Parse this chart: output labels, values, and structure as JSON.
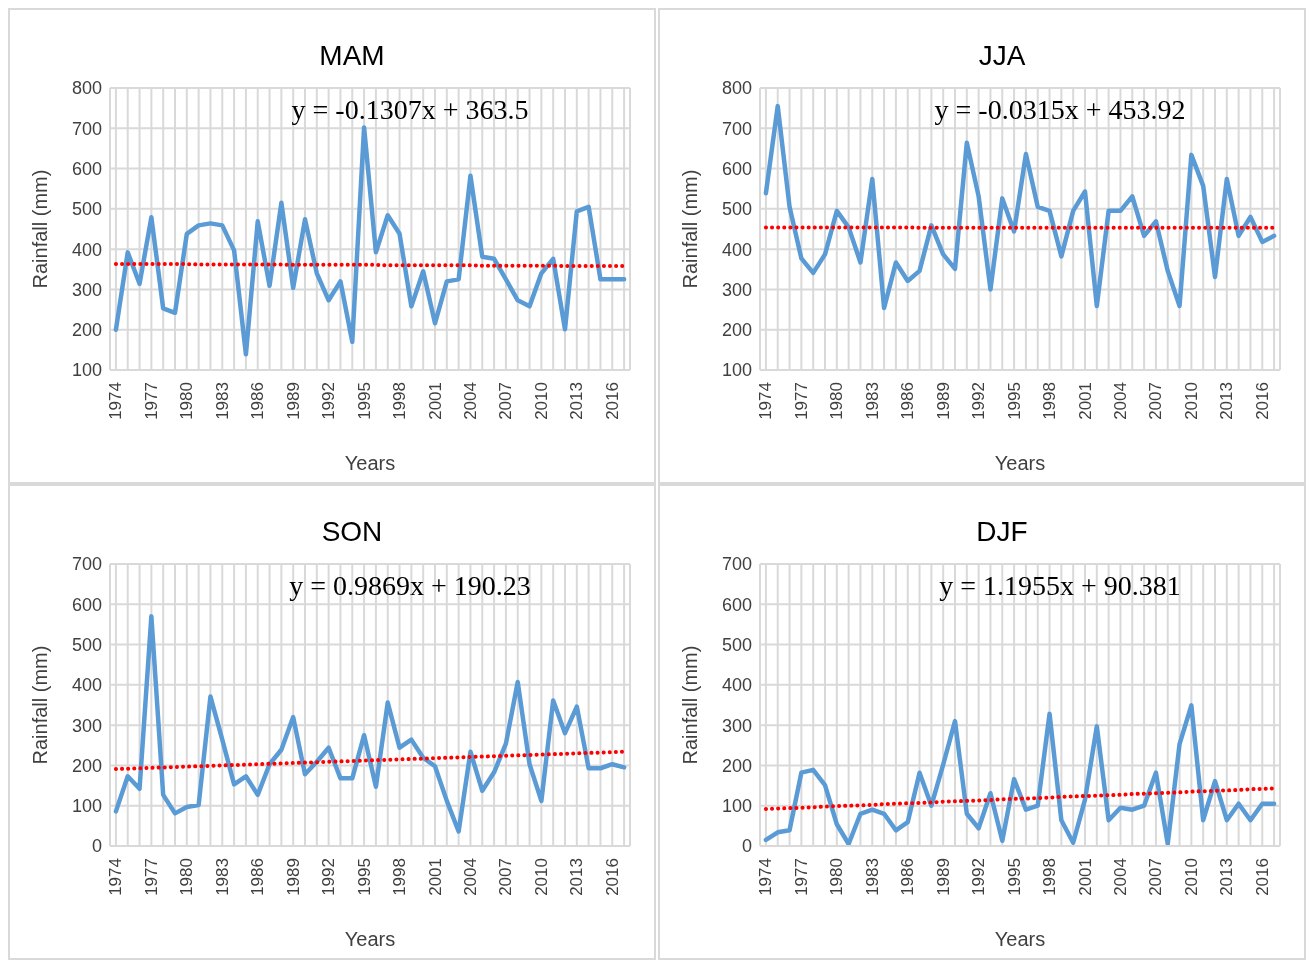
{
  "chart_data": [
    {
      "type": "line",
      "title": "MAM",
      "xlabel": "Years",
      "ylabel": "Rainfall (mm)",
      "annotations": [
        "y = -0.1307x + 363.5"
      ],
      "x": [
        1974,
        1975,
        1976,
        1977,
        1978,
        1979,
        1980,
        1981,
        1982,
        1983,
        1984,
        1985,
        1986,
        1987,
        1988,
        1989,
        1990,
        1991,
        1992,
        1993,
        1994,
        1995,
        1996,
        1997,
        1998,
        1999,
        2000,
        2001,
        2002,
        2003,
        2004,
        2005,
        2006,
        2007,
        2008,
        2009,
        2010,
        2011,
        2012,
        2013,
        2014,
        2015,
        2016,
        2017
      ],
      "xlim": [
        1973.5,
        2017.5
      ],
      "xticks": [
        1974,
        {
          "value": 1975,
          "label": null
        },
        {
          "value": 1976,
          "label": null
        },
        1977,
        {
          "value": 1978,
          "label": null
        },
        {
          "value": 1979,
          "label": null
        },
        1980,
        {
          "value": 1981,
          "label": null
        },
        {
          "value": 1982,
          "label": null
        },
        1983,
        {
          "value": 1984,
          "label": null
        },
        {
          "value": 1985,
          "label": null
        },
        1986,
        {
          "value": 1987,
          "label": null
        },
        {
          "value": 1988,
          "label": null
        },
        1989,
        {
          "value": 1990,
          "label": null
        },
        {
          "value": 1991,
          "label": null
        },
        1992,
        {
          "value": 1993,
          "label": null
        },
        {
          "value": 1994,
          "label": null
        },
        1995,
        {
          "value": 1996,
          "label": null
        },
        {
          "value": 1997,
          "label": null
        },
        1998,
        {
          "value": 1999,
          "label": null
        },
        {
          "value": 2000,
          "label": null
        },
        2001,
        {
          "value": 2002,
          "label": null
        },
        {
          "value": 2003,
          "label": null
        },
        2004,
        {
          "value": 2005,
          "label": null
        },
        {
          "value": 2006,
          "label": null
        },
        2007,
        {
          "value": 2008,
          "label": null
        },
        {
          "value": 2009,
          "label": null
        },
        2010,
        {
          "value": 2011,
          "label": null
        },
        {
          "value": 2012,
          "label": null
        },
        2013,
        {
          "value": 2014,
          "label": null
        },
        {
          "value": 2015,
          "label": null
        },
        2016,
        {
          "value": 2017,
          "label": null
        }
      ],
      "ylim": [
        100,
        800
      ],
      "yticks": [
        100,
        200,
        300,
        400,
        500,
        600,
        700,
        800
      ],
      "grid": true,
      "line_style": "solid",
      "series": [
        {
          "color": "#5b9bd5",
          "values": [
            200,
            392,
            314,
            479,
            253,
            242,
            438,
            459,
            464,
            459,
            397,
            139,
            469,
            309,
            515,
            304,
            474,
            340,
            273,
            320,
            170,
            702,
            392,
            484,
            438,
            258,
            345,
            216,
            320,
            325,
            582,
            381,
            376,
            325,
            273,
            258,
            340,
            376,
            201,
            494,
            505,
            325,
            325,
            325
          ]
        },
        {
          "type": "line",
          "line_style": "dotted",
          "color": "#ff0000",
          "values": [
            363,
            363,
            363,
            363,
            363,
            363,
            363,
            362,
            362,
            362,
            362,
            362,
            362,
            362,
            362,
            361,
            361,
            361,
            361,
            361,
            361,
            361,
            361,
            360,
            360,
            360,
            360,
            360,
            360,
            360,
            360,
            359,
            359,
            359,
            359,
            359,
            359,
            359,
            358,
            358,
            358,
            358,
            358,
            358
          ]
        }
      ]
    },
    {
      "type": "line",
      "title": "JJA",
      "xlabel": "Years",
      "ylabel": "Rainfall (mm)",
      "annotations": [
        "y = -0.0315x + 453.92"
      ],
      "x": [
        1974,
        1975,
        1976,
        1977,
        1978,
        1979,
        1980,
        1981,
        1982,
        1983,
        1984,
        1985,
        1986,
        1987,
        1988,
        1989,
        1990,
        1991,
        1992,
        1993,
        1994,
        1995,
        1996,
        1997,
        1998,
        1999,
        2000,
        2001,
        2002,
        2003,
        2004,
        2005,
        2006,
        2007,
        2008,
        2009,
        2010,
        2011,
        2012,
        2013,
        2014,
        2015,
        2016,
        2017
      ],
      "xlim": [
        1973.5,
        2017.5
      ],
      "xticks": [
        1974,
        {
          "value": 1975,
          "label": null
        },
        {
          "value": 1976,
          "label": null
        },
        1977,
        {
          "value": 1978,
          "label": null
        },
        {
          "value": 1979,
          "label": null
        },
        1980,
        {
          "value": 1981,
          "label": null
        },
        {
          "value": 1982,
          "label": null
        },
        1983,
        {
          "value": 1984,
          "label": null
        },
        {
          "value": 1985,
          "label": null
        },
        1986,
        {
          "value": 1987,
          "label": null
        },
        {
          "value": 1988,
          "label": null
        },
        1989,
        {
          "value": 1990,
          "label": null
        },
        {
          "value": 1991,
          "label": null
        },
        1992,
        {
          "value": 1993,
          "label": null
        },
        {
          "value": 1994,
          "label": null
        },
        1995,
        {
          "value": 1996,
          "label": null
        },
        {
          "value": 1997,
          "label": null
        },
        1998,
        {
          "value": 1999,
          "label": null
        },
        {
          "value": 2000,
          "label": null
        },
        2001,
        {
          "value": 2002,
          "label": null
        },
        {
          "value": 2003,
          "label": null
        },
        2004,
        {
          "value": 2005,
          "label": null
        },
        {
          "value": 2006,
          "label": null
        },
        2007,
        {
          "value": 2008,
          "label": null
        },
        {
          "value": 2009,
          "label": null
        },
        2010,
        {
          "value": 2011,
          "label": null
        },
        {
          "value": 2012,
          "label": null
        },
        2013,
        {
          "value": 2014,
          "label": null
        },
        {
          "value": 2015,
          "label": null
        },
        2016,
        {
          "value": 2017,
          "label": null
        }
      ],
      "ylim": [
        100,
        800
      ],
      "yticks": [
        100,
        200,
        300,
        400,
        500,
        600,
        700,
        800
      ],
      "grid": true,
      "line_style": "solid",
      "series": [
        {
          "color": "#5b9bd5",
          "values": [
            539,
            755,
            505,
            377,
            341,
            387,
            495,
            454,
            367,
            574,
            254,
            367,
            321,
            346,
            459,
            387,
            351,
            664,
            531,
            300,
            526,
            444,
            636,
            505,
            495,
            382,
            495,
            543,
            259,
            495,
            495,
            531,
            433,
            469,
            346,
            259,
            634,
            557,
            331,
            574,
            433,
            480,
            418,
            433
          ]
        },
        {
          "type": "line",
          "line_style": "dotted",
          "color": "#ff0000",
          "values": [
            454,
            454,
            454,
            454,
            454,
            454,
            454,
            454,
            454,
            454,
            454,
            454,
            454,
            453,
            453,
            453,
            453,
            453,
            453,
            453,
            453,
            453,
            453,
            453,
            453,
            453,
            453,
            453,
            453,
            453,
            453,
            453,
            453,
            453,
            453,
            453,
            453,
            453,
            453,
            453,
            453,
            453,
            453,
            453
          ]
        }
      ]
    },
    {
      "type": "line",
      "title": "SON",
      "xlabel": "Years",
      "ylabel": "Rainfall (mm)",
      "annotations": [
        "y = 0.9869x + 190.23"
      ],
      "x": [
        1974,
        1975,
        1976,
        1977,
        1978,
        1979,
        1980,
        1981,
        1982,
        1983,
        1984,
        1985,
        1986,
        1987,
        1988,
        1989,
        1990,
        1991,
        1992,
        1993,
        1994,
        1995,
        1996,
        1997,
        1998,
        1999,
        2000,
        2001,
        2002,
        2003,
        2004,
        2005,
        2006,
        2007,
        2008,
        2009,
        2010,
        2011,
        2012,
        2013,
        2014,
        2015,
        2016,
        2017
      ],
      "xlim": [
        1973.5,
        2017.5
      ],
      "xticks": [
        1974,
        {
          "value": 1975,
          "label": null
        },
        {
          "value": 1976,
          "label": null
        },
        1977,
        {
          "value": 1978,
          "label": null
        },
        {
          "value": 1979,
          "label": null
        },
        1980,
        {
          "value": 1981,
          "label": null
        },
        {
          "value": 1982,
          "label": null
        },
        1983,
        {
          "value": 1984,
          "label": null
        },
        {
          "value": 1985,
          "label": null
        },
        1986,
        {
          "value": 1987,
          "label": null
        },
        {
          "value": 1988,
          "label": null
        },
        1989,
        {
          "value": 1990,
          "label": null
        },
        {
          "value": 1991,
          "label": null
        },
        1992,
        {
          "value": 1993,
          "label": null
        },
        {
          "value": 1994,
          "label": null
        },
        1995,
        {
          "value": 1996,
          "label": null
        },
        {
          "value": 1997,
          "label": null
        },
        1998,
        {
          "value": 1999,
          "label": null
        },
        {
          "value": 2000,
          "label": null
        },
        2001,
        {
          "value": 2002,
          "label": null
        },
        {
          "value": 2003,
          "label": null
        },
        2004,
        {
          "value": 2005,
          "label": null
        },
        {
          "value": 2006,
          "label": null
        },
        2007,
        {
          "value": 2008,
          "label": null
        },
        {
          "value": 2009,
          "label": null
        },
        2010,
        {
          "value": 2011,
          "label": null
        },
        {
          "value": 2012,
          "label": null
        },
        2013,
        {
          "value": 2014,
          "label": null
        },
        {
          "value": 2015,
          "label": null
        },
        2016,
        {
          "value": 2017,
          "label": null
        }
      ],
      "ylim": [
        0,
        700
      ],
      "yticks": [
        0,
        100,
        200,
        300,
        400,
        500,
        600,
        700
      ],
      "grid": true,
      "line_style": "solid",
      "series": [
        {
          "color": "#5b9bd5",
          "values": [
            86,
            173,
            142,
            570,
            127,
            81,
            97,
            102,
            371,
            264,
            153,
            173,
            127,
            203,
            239,
            320,
            178,
            209,
            244,
            168,
            168,
            275,
            147,
            356,
            244,
            264,
            219,
            198,
            112,
            36,
            234,
            137,
            183,
            254,
            407,
            203,
            112,
            361,
            280,
            346,
            193,
            193,
            203,
            195
          ]
        },
        {
          "type": "line",
          "line_style": "dotted",
          "color": "#ff0000",
          "values": [
            191,
            192,
            193,
            194,
            195,
            196,
            197,
            198,
            199,
            200,
            201,
            202,
            203,
            204,
            205,
            206,
            207,
            208,
            209,
            210,
            211,
            212,
            213,
            214,
            215,
            216,
            217,
            218,
            219,
            220,
            221,
            222,
            223,
            224,
            225,
            226,
            227,
            228,
            229,
            230,
            231,
            232,
            233,
            234
          ]
        }
      ]
    },
    {
      "type": "line",
      "title": "DJF",
      "xlabel": "Years",
      "ylabel": "Rainfall (mm)",
      "annotations": [
        "y = 1.1955x + 90.381"
      ],
      "x": [
        1974,
        1975,
        1976,
        1977,
        1978,
        1979,
        1980,
        1981,
        1982,
        1983,
        1984,
        1985,
        1986,
        1987,
        1988,
        1989,
        1990,
        1991,
        1992,
        1993,
        1994,
        1995,
        1996,
        1997,
        1998,
        1999,
        2000,
        2001,
        2002,
        2003,
        2004,
        2005,
        2006,
        2007,
        2008,
        2009,
        2010,
        2011,
        2012,
        2013,
        2014,
        2015,
        2016,
        2017
      ],
      "xlim": [
        1973.5,
        2017.5
      ],
      "xticks": [
        1974,
        {
          "value": 1975,
          "label": null
        },
        {
          "value": 1976,
          "label": null
        },
        1977,
        {
          "value": 1978,
          "label": null
        },
        {
          "value": 1979,
          "label": null
        },
        1980,
        {
          "value": 1981,
          "label": null
        },
        {
          "value": 1982,
          "label": null
        },
        1983,
        {
          "value": 1984,
          "label": null
        },
        {
          "value": 1985,
          "label": null
        },
        1986,
        {
          "value": 1987,
          "label": null
        },
        {
          "value": 1988,
          "label": null
        },
        1989,
        {
          "value": 1990,
          "label": null
        },
        {
          "value": 1991,
          "label": null
        },
        1992,
        {
          "value": 1993,
          "label": null
        },
        {
          "value": 1994,
          "label": null
        },
        1995,
        {
          "value": 1996,
          "label": null
        },
        {
          "value": 1997,
          "label": null
        },
        1998,
        {
          "value": 1999,
          "label": null
        },
        {
          "value": 2000,
          "label": null
        },
        2001,
        {
          "value": 2002,
          "label": null
        },
        {
          "value": 2003,
          "label": null
        },
        2004,
        {
          "value": 2005,
          "label": null
        },
        {
          "value": 2006,
          "label": null
        },
        2007,
        {
          "value": 2008,
          "label": null
        },
        {
          "value": 2009,
          "label": null
        },
        2010,
        {
          "value": 2011,
          "label": null
        },
        {
          "value": 2012,
          "label": null
        },
        2013,
        {
          "value": 2014,
          "label": null
        },
        {
          "value": 2015,
          "label": null
        },
        2016,
        {
          "value": 2017,
          "label": null
        }
      ],
      "ylim": [
        0,
        700
      ],
      "yticks": [
        0,
        100,
        200,
        300,
        400,
        500,
        600,
        700
      ],
      "grid": true,
      "line_style": "solid",
      "series": [
        {
          "color": "#5b9bd5",
          "values": [
            15,
            34,
            39,
            182,
            189,
            151,
            54,
            5,
            80,
            90,
            80,
            39,
            59,
            182,
            100,
            202,
            310,
            80,
            44,
            131,
            13,
            166,
            90,
            100,
            328,
            64,
            8,
            115,
            297,
            64,
            95,
            90,
            100,
            182,
            5,
            253,
            349,
            64,
            161,
            64,
            105,
            64,
            105,
            105
          ]
        },
        {
          "type": "line",
          "line_style": "dotted",
          "color": "#ff0000",
          "values": [
            92,
            93,
            94,
            95,
            96,
            98,
            99,
            100,
            101,
            102,
            104,
            105,
            106,
            107,
            108,
            110,
            111,
            112,
            113,
            114,
            116,
            117,
            118,
            119,
            120,
            122,
            123,
            124,
            125,
            126,
            127,
            129,
            130,
            131,
            132,
            133,
            135,
            136,
            137,
            138,
            139,
            141,
            142,
            143
          ]
        }
      ]
    }
  ]
}
